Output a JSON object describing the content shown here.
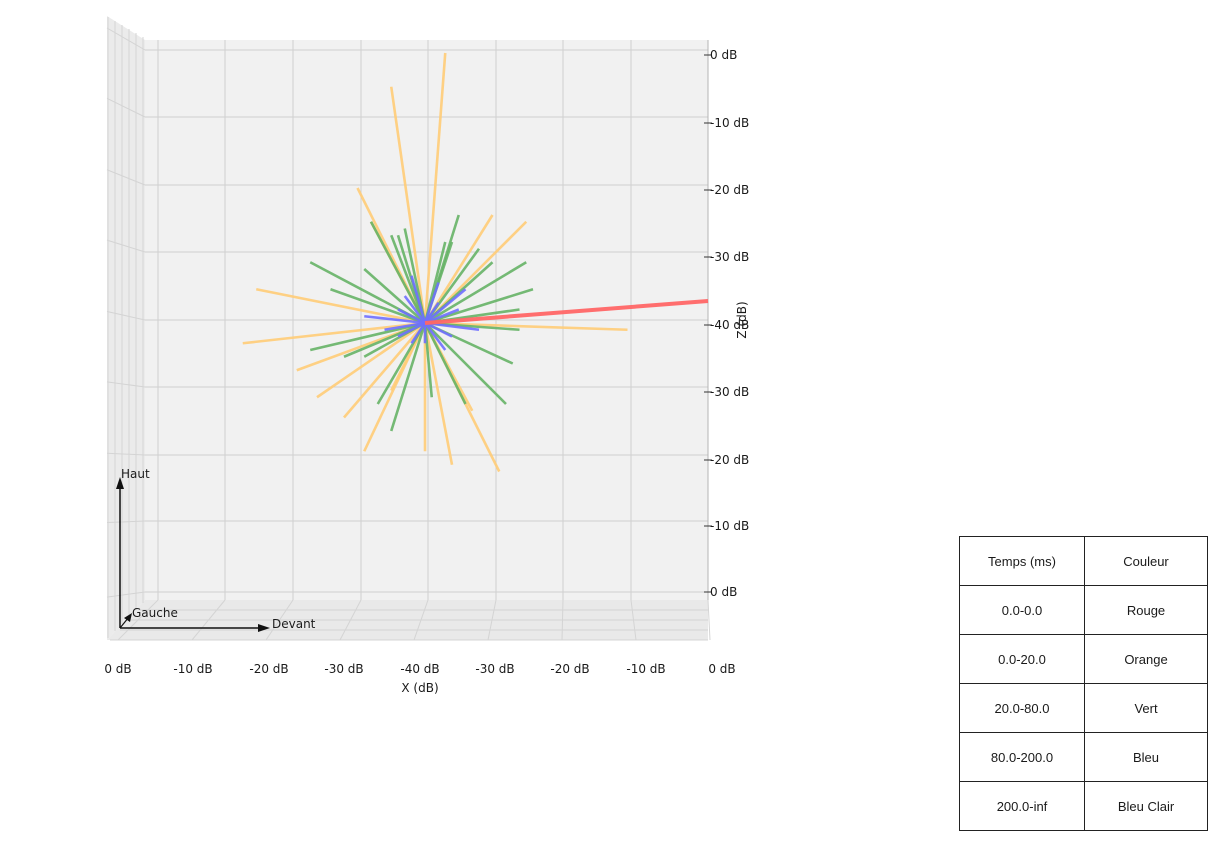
{
  "chart_data": {
    "type": "3d-line",
    "xlabel": "X (dB)",
    "zlabel": "Z (dB)",
    "x_tick_labels": [
      "0 dB",
      "-10 dB",
      "-20 dB",
      "-30 dB",
      "-40 dB",
      "-30 dB",
      "-20 dB",
      "-10 dB",
      "0 dB"
    ],
    "z_tick_labels": [
      "0 dB",
      "-10 dB",
      "-20 dB",
      "-30 dB",
      "-40 dB",
      "-30 dB",
      "-20 dB",
      "-10 dB",
      "0 dB"
    ],
    "grid": true,
    "view": "front",
    "orientation_labels": {
      "up": "Haut",
      "left": "Gauche",
      "front": "Devant"
    },
    "colors": {
      "Rouge": "#ff6666",
      "Orange": "#ffcc77",
      "Vert": "#66b366",
      "Bleu": "#6f6fff"
    },
    "series": [
      {
        "name": "Rouge",
        "color": "#ff6666",
        "rays_dB": [
          [
            0,
            -3
          ]
        ]
      },
      {
        "name": "Orange",
        "color": "#ffcc77",
        "rays_dB": [
          [
            3,
            40
          ],
          [
            -5,
            35
          ],
          [
            -25,
            5
          ],
          [
            -27,
            -3
          ],
          [
            -19,
            -7
          ],
          [
            -16,
            -11
          ],
          [
            -10,
            20
          ],
          [
            -8,
            15
          ],
          [
            -9,
            -19
          ],
          [
            0,
            -19
          ],
          [
            4,
            -21
          ],
          [
            11,
            -22
          ],
          [
            10,
            16
          ],
          [
            15,
            15
          ],
          [
            30,
            -1
          ],
          [
            -12,
            -14
          ],
          [
            -5,
            -10
          ],
          [
            7,
            -13
          ]
        ]
      },
      {
        "name": "Vert",
        "color": "#66b366",
        "rays_dB": [
          [
            -17,
            9
          ],
          [
            -14,
            5
          ],
          [
            -9,
            8
          ],
          [
            -8,
            15
          ],
          [
            -5,
            13
          ],
          [
            -4,
            13
          ],
          [
            5,
            16
          ],
          [
            8,
            11
          ],
          [
            4,
            12
          ],
          [
            10,
            9
          ],
          [
            15,
            9
          ],
          [
            16,
            5
          ],
          [
            14,
            2
          ],
          [
            -17,
            -4
          ],
          [
            -12,
            -5
          ],
          [
            -9,
            -5
          ],
          [
            -7,
            -12
          ],
          [
            -5,
            -16
          ],
          [
            1,
            -11
          ],
          [
            6,
            -12
          ],
          [
            12,
            -12
          ],
          [
            13,
            -6
          ],
          [
            14,
            -1
          ],
          [
            -3,
            14
          ],
          [
            3,
            12
          ]
        ]
      },
      {
        "name": "Bleu",
        "color": "#6f6fff",
        "rays_dB": [
          [
            -9,
            1
          ],
          [
            -4,
            2
          ],
          [
            -2,
            7
          ],
          [
            2,
            6
          ],
          [
            6,
            5
          ],
          [
            4,
            -2
          ],
          [
            3,
            -4
          ],
          [
            -4,
            -2
          ],
          [
            -2,
            -3
          ],
          [
            8,
            -1
          ],
          [
            -6,
            -1
          ],
          [
            2,
            3
          ],
          [
            0,
            -3
          ],
          [
            5,
            2
          ],
          [
            -3,
            4
          ]
        ]
      }
    ]
  },
  "legend_table": {
    "headers": [
      "Temps (ms)",
      "Couleur"
    ],
    "rows": [
      [
        "0.0-0.0",
        "Rouge"
      ],
      [
        "0.0-20.0",
        "Orange"
      ],
      [
        "20.0-80.0",
        "Vert"
      ],
      [
        "80.0-200.0",
        "Bleu"
      ],
      [
        "200.0-inf",
        "Bleu Clair"
      ]
    ]
  }
}
